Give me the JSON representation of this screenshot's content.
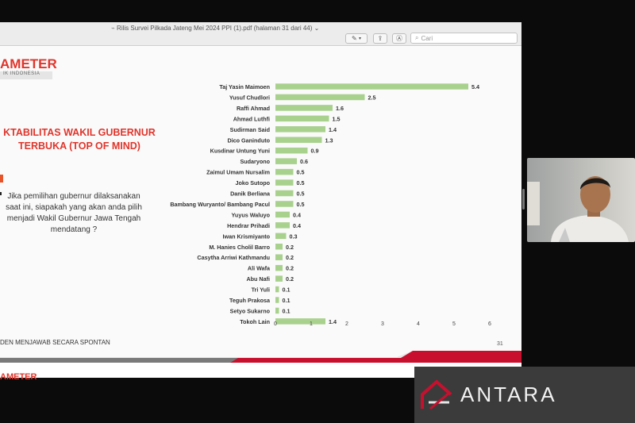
{
  "window": {
    "title": "Rilis Survei Pilkada Jateng Mei 2024 PPI (1).pdf (halaman 31 dari 44)",
    "search_placeholder": "Cari"
  },
  "slide": {
    "logo": "AMETER",
    "logo_sub": "IK INDONESIA",
    "heading_line1": "KTABILITAS WAKIL GUBERNUR",
    "heading_line2": "TERBUKA (TOP OF MIND)",
    "question": "Jika pemilihan gubernur dilaksanakan saat ini, siapakah yang akan anda pilih menjadi Wakil Gubernur Jawa Tengah mendatang ?",
    "footnote": "DEN MENJAWAB SECARA SPONTAN",
    "page_number": "31",
    "bottom_logo": "AMETER"
  },
  "watermark": {
    "brand": "ANTARA"
  },
  "colors": {
    "bar": "#a9d18e",
    "accent_red": "#e0352b",
    "band_red": "#c8102e"
  },
  "chart_data": {
    "type": "bar",
    "orientation": "horizontal",
    "categories": [
      "Taj Yasin Maimoen",
      "Yusuf Chudlori",
      "Raffi Ahmad",
      "Ahmad Luthfi",
      "Sudirman Said",
      "Dico Ganinduto",
      "Kusdinar Untung Yuni",
      "Sudaryono",
      "Zaimul Umam Nursalim",
      "Joko Sutopo",
      "Danik Berliana",
      "Bambang Wuryanto/ Bambang Pacul",
      "Yuyus Waluyo",
      "Hendrar Prihadi",
      "Iwan Krismiyanto",
      "M. Hanies Cholil Barro",
      "Casytha Arriwi Kathmandu",
      "Ali Wafa",
      "Abu Nafi",
      "Tri Yuli",
      "Teguh Prakosa",
      "Setyo Sukarno",
      "Tokoh Lain"
    ],
    "values": [
      5.4,
      2.5,
      1.6,
      1.5,
      1.4,
      1.3,
      0.9,
      0.6,
      0.5,
      0.5,
      0.5,
      0.5,
      0.4,
      0.4,
      0.3,
      0.2,
      0.2,
      0.2,
      0.2,
      0.1,
      0.1,
      0.1,
      1.4
    ],
    "value_labels": [
      "5.4",
      "2.5",
      "1.6",
      "1.5",
      "1.4",
      "1.3",
      "0.9",
      "0.6",
      "0.5",
      "0.5",
      "0.5",
      "0.5",
      "0.4",
      "0.4",
      "0.3",
      "0.2",
      "0.2",
      "0.2",
      "0.2",
      "0.1",
      "0.1",
      "0.1",
      "1.4"
    ],
    "xlim": [
      0,
      6
    ],
    "xticks": [
      "0",
      "1",
      "2",
      "3",
      "4",
      "5",
      "6"
    ],
    "grid": false
  }
}
